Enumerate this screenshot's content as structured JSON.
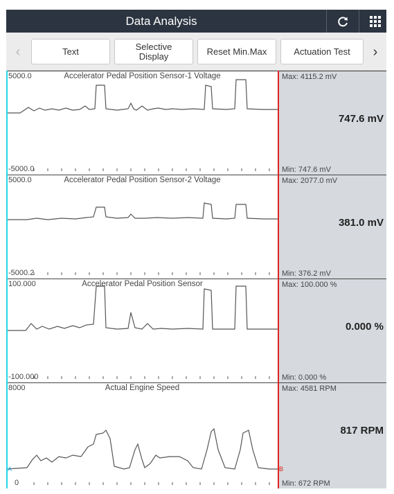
{
  "header": {
    "title": "Data Analysis",
    "refresh_icon": "refresh-icon",
    "grid_icon": "grid-menu-icon"
  },
  "toolbar": {
    "text_label": "Text",
    "selective_label": "Selective Display",
    "reset_label": "Reset Min.Max",
    "actuation_label": "Actuation Test"
  },
  "panels": [
    {
      "title": "Accelerator Pedal Position Sensor-1 Voltage",
      "ymax": "5000.0",
      "ymin": "-5000.0",
      "max": "Max: 4115.2 mV",
      "min": "Min: 747.6 mV",
      "current": "747.6 mV"
    },
    {
      "title": "Accelerator Pedal Position Sensor-2 Voltage",
      "ymax": "5000.0",
      "ymin": "-5000.2",
      "max": "Max: 2077.0 mV",
      "min": "Min: 376.2 mV",
      "current": "381.0 mV"
    },
    {
      "title": "Accelerator Pedal Position Sensor",
      "ymax": "100.000",
      "ymin": "-100.000",
      "max": "Max: 100.000 %",
      "min": "Min: 0.000 %",
      "current": "0.000 %"
    },
    {
      "title": "Actual Engine Speed",
      "ymax": "8000",
      "ymin": "0",
      "max": "Max: 4581 RPM",
      "min": "Min: 672 RPM",
      "current": "817 RPM"
    }
  ],
  "cursors": {
    "a_label": "A",
    "b_label": "B",
    "a_color": "#27d6e8",
    "b_color": "#e0211e"
  }
}
